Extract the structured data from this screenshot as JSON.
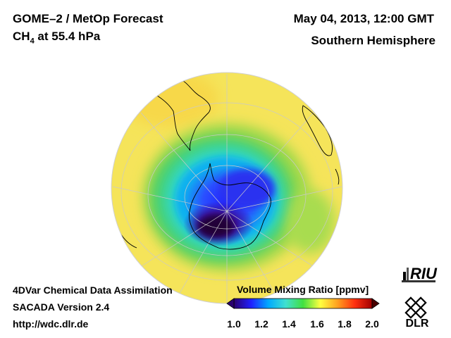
{
  "header": {
    "title": "GOME–2 / MetOp Forecast",
    "species_prefix": "CH",
    "species_subscript": "4",
    "species_suffix": " at 55.4 hPa",
    "date": "May 04, 2013, 12:00 GMT",
    "region": "Southern Hemisphere"
  },
  "footer": {
    "line1": "4DVar Chemical Data Assimilation",
    "line2": "SACADA Version 2.4",
    "line3": "http://wdc.dlr.de"
  },
  "colorbar": {
    "title": "Volume Mixing Ratio [ppmv]",
    "ticks": [
      "1.0",
      "1.2",
      "1.4",
      "1.6",
      "1.8",
      "2.0"
    ],
    "min": 1.0,
    "max": 2.0,
    "colors": [
      "#2a0070",
      "#2020ff",
      "#00aaff",
      "#40e0d0",
      "#40e040",
      "#ffff40",
      "#ffa020",
      "#ff3010",
      "#a00000"
    ]
  },
  "logos": {
    "riu": "RIU",
    "dlr": "DLR"
  }
}
